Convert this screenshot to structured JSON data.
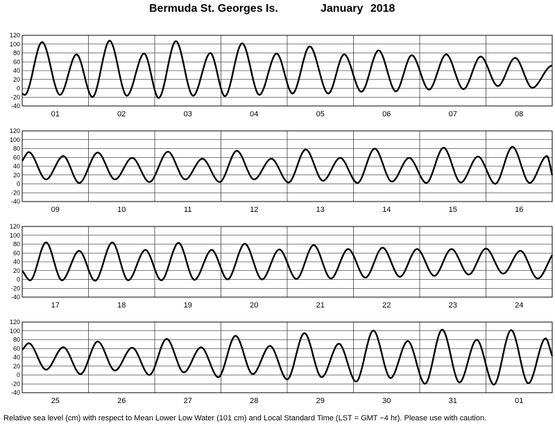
{
  "header": {
    "station": "Bermuda St. Georges Is.",
    "period": "January   2018"
  },
  "footer": {
    "note": "Relative sea level (cm) with respect to Mean Lower Low Water (101 cm) and Local Standard Time (LST = GMT −4 hr). Please use with caution."
  },
  "chart_data": {
    "type": "line",
    "ylabel": "",
    "ylim": [
      -40,
      120
    ],
    "yticks": [
      120,
      100,
      80,
      60,
      40,
      20,
      0,
      -20,
      -40
    ],
    "grid": true,
    "panels": [
      {
        "days": [
          "01",
          "02",
          "03",
          "04",
          "05",
          "06",
          "07",
          "08"
        ],
        "series": [
          {
            "x": [
              0,
              0.04,
              0.3,
              0.57,
              0.82,
              1.06,
              1.32,
              1.58,
              1.84,
              2.06,
              2.32,
              2.58,
              2.84,
              3.06,
              3.32,
              3.58,
              3.84,
              4.08,
              4.34,
              4.62,
              4.86,
              5.12,
              5.38,
              5.64,
              5.88,
              6.14,
              6.4,
              6.66,
              6.92,
              7.18,
              7.44,
              7.7,
              7.96,
              8.0
            ],
            "y": [
              -12,
              -15,
              105,
              -15,
              77,
              -20,
              108,
              -17,
              79,
              -22,
              107,
              -17,
              80,
              -18,
              102,
              -15,
              79,
              -12,
              95,
              -12,
              77,
              -8,
              86,
              -7,
              75,
              -3,
              77,
              -2,
              72,
              5,
              69,
              1,
              49,
              52
            ]
          }
        ]
      },
      {
        "days": [
          "09",
          "10",
          "11",
          "12",
          "13",
          "14",
          "15",
          "16"
        ],
        "series": [
          {
            "x": [
              0,
              0.1,
              0.36,
              0.62,
              0.86,
              1.14,
              1.4,
              1.66,
              1.92,
              2.2,
              2.46,
              2.72,
              2.98,
              3.24,
              3.5,
              3.76,
              4.02,
              4.28,
              4.54,
              4.8,
              5.06,
              5.32,
              5.58,
              5.84,
              6.1,
              6.36,
              6.62,
              6.88,
              7.14,
              7.4,
              7.66,
              7.92,
              8.0
            ],
            "y": [
              52,
              72,
              10,
              63,
              2,
              71,
              10,
              59,
              4,
              73,
              10,
              57,
              4,
              75,
              10,
              57,
              3,
              78,
              7,
              59,
              2,
              80,
              5,
              59,
              2,
              82,
              3,
              62,
              0,
              84,
              2,
              63,
              20
            ]
          }
        ]
      },
      {
        "days": [
          "17",
          "18",
          "19",
          "20",
          "21",
          "22",
          "23",
          "24"
        ],
        "series": [
          {
            "x": [
              0,
              0.12,
              0.36,
              0.6,
              0.86,
              1.1,
              1.36,
              1.6,
              1.86,
              2.1,
              2.36,
              2.6,
              2.86,
              3.1,
              3.36,
              3.62,
              3.88,
              4.14,
              4.4,
              4.66,
              4.92,
              5.18,
              5.44,
              5.7,
              5.96,
              6.22,
              6.48,
              6.74,
              7.0,
              7.26,
              7.52,
              7.78,
              8.0
            ],
            "y": [
              20,
              -2,
              84,
              -2,
              65,
              -3,
              84,
              -2,
              67,
              -2,
              83,
              -1,
              67,
              0,
              81,
              0,
              68,
              1,
              78,
              2,
              69,
              4,
              72,
              6,
              69,
              8,
              69,
              11,
              70,
              13,
              65,
              2,
              55
            ]
          }
        ]
      },
      {
        "days": [
          "25",
          "26",
          "27",
          "28",
          "29",
          "30",
          "31",
          "01"
        ],
        "series": [
          {
            "x": [
              0,
              0.1,
              0.36,
              0.62,
              0.88,
              1.14,
              1.4,
              1.66,
              1.92,
              2.18,
              2.44,
              2.7,
              2.96,
              3.22,
              3.48,
              3.74,
              4.0,
              4.26,
              4.52,
              4.78,
              5.04,
              5.3,
              5.56,
              5.82,
              6.08,
              6.34,
              6.6,
              6.86,
              7.12,
              7.38,
              7.64,
              7.9,
              8.0
            ],
            "y": [
              57,
              72,
              12,
              63,
              2,
              76,
              10,
              62,
              0,
              82,
              6,
              63,
              -5,
              89,
              2,
              66,
              -10,
              95,
              -5,
              71,
              -15,
              101,
              -7,
              77,
              -20,
              103,
              -17,
              80,
              -22,
              102,
              -19,
              83,
              43
            ]
          }
        ]
      }
    ]
  }
}
